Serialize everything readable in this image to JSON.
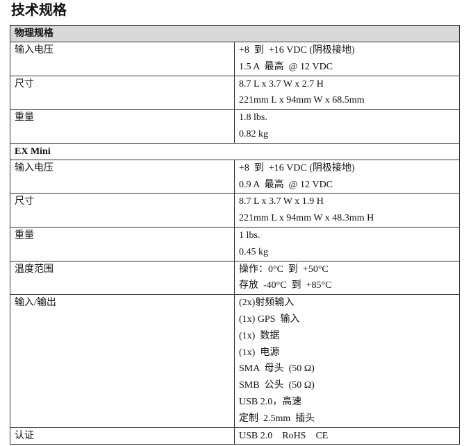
{
  "title": "技术规格",
  "sections": [
    {
      "title": "物理规格",
      "rows": [
        {
          "label": "输入电压",
          "lines": [
            "+8  到  +16 VDC (阴极接地)",
            "1.5 A  最高  @ 12 VDC"
          ]
        },
        {
          "label": "尺寸",
          "lines": [
            "8.7 L x 3.7 W x 2.7 H",
            "221mm L x 94mm W x 68.5mm"
          ]
        },
        {
          "label": "重量",
          "lines": [
            "1.8 lbs.",
            "0.82 kg"
          ]
        }
      ]
    },
    {
      "title": "EX Mini",
      "rows": [
        {
          "label": "输入电压",
          "lines": [
            "+8  到  +16 VDC (阴极接地)",
            "0.9 A  最高  @ 12 VDC"
          ]
        },
        {
          "label": "尺寸",
          "lines": [
            "8.7 L x 3.7 W x 1.9 H",
            "221mm L x 94mm W x 48.3mm H"
          ]
        },
        {
          "label": "重量",
          "lines": [
            "1 lbs.",
            "0.45 kg"
          ]
        },
        {
          "label": "温度范围",
          "lines": [
            "操作：0°C  到  +50°C",
            "存放  -40°C  到  +85°C"
          ]
        },
        {
          "label": "输入/输出",
          "lines": [
            "(2x)射频输入",
            "(1x) GPS  输入",
            "(1x)  数据",
            "(1x)  电源",
            "SMA  母头  (50 Ω)",
            "SMB  公头  (50 Ω)",
            "USB 2.0，高速",
            "定制  2.5mm  插头"
          ]
        },
        {
          "label": "认证",
          "lines": [
            "USB 2.0    RoHS    CE"
          ]
        }
      ]
    }
  ]
}
